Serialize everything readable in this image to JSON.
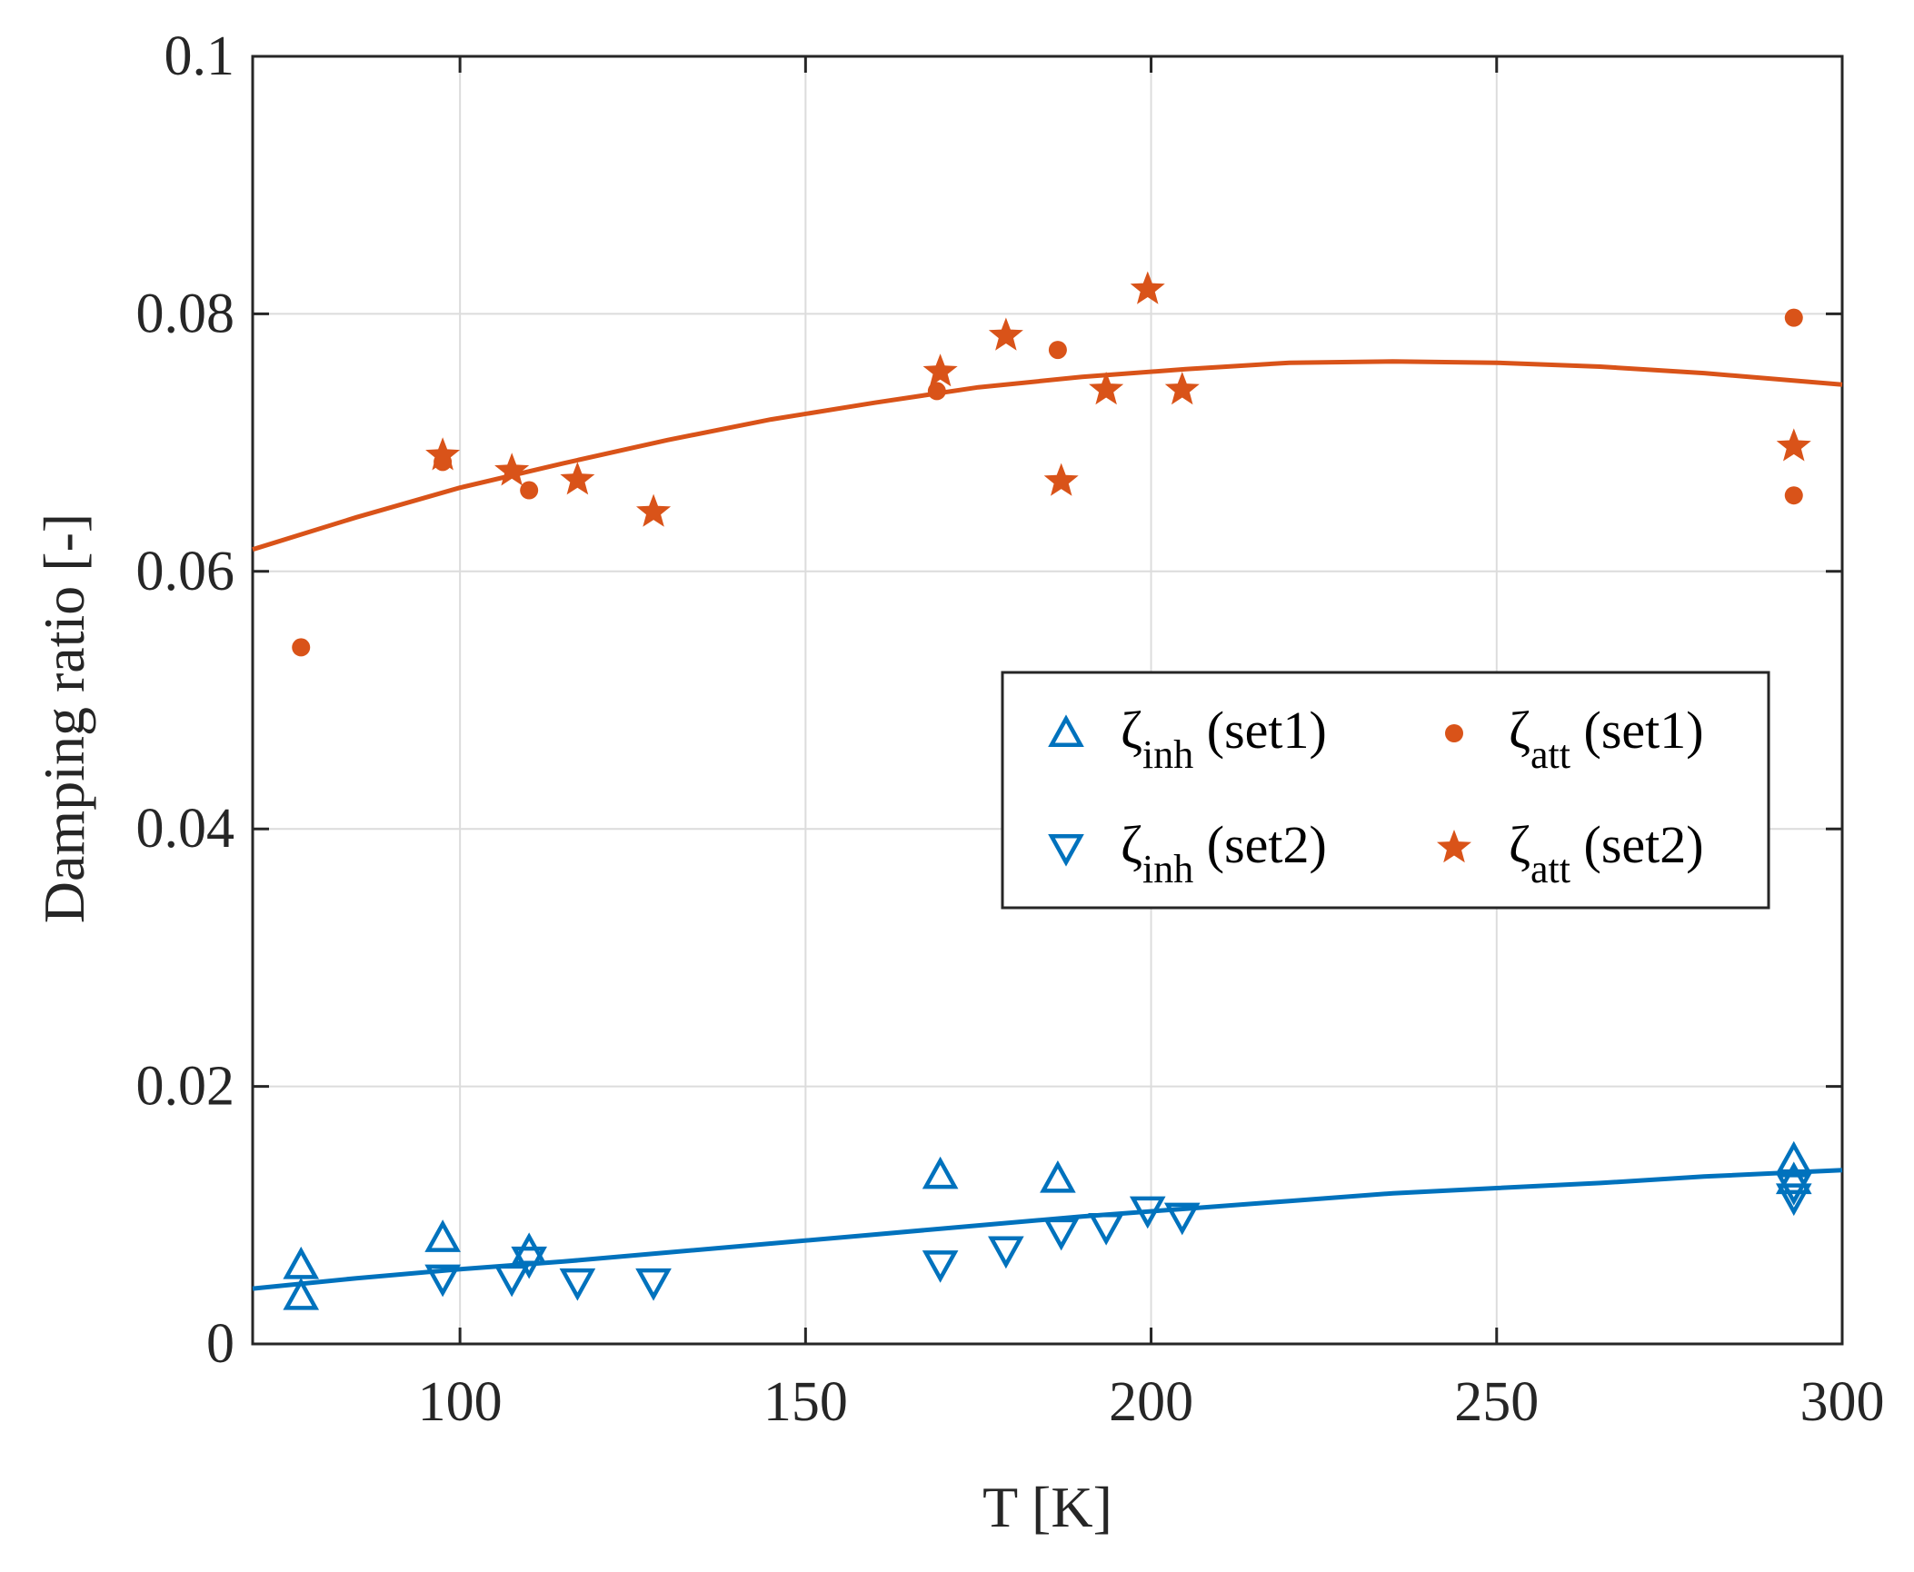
{
  "chart_data": {
    "type": "scatter",
    "title": "",
    "xlabel": "T [K]",
    "ylabel": "Damping ratio [-]",
    "xlim": [
      70,
      300
    ],
    "ylim": [
      0,
      0.1
    ],
    "x_ticks": [
      100,
      150,
      200,
      250,
      300
    ],
    "x_tick_labels": [
      "100",
      "150",
      "200",
      "250",
      "300"
    ],
    "y_ticks": [
      0,
      0.02,
      0.04,
      0.06,
      0.08,
      0.1
    ],
    "y_tick_labels": [
      "0",
      "0.02",
      "0.04",
      "0.06",
      "0.08",
      "0.1"
    ],
    "grid": true,
    "legend_position": "center-right",
    "series": [
      {
        "name": "ζinh (set1)",
        "label_main": "ζ",
        "label_sub": "inh",
        "label_suffix": " (set1)",
        "marker": "triangle-up",
        "color": "#0072BD",
        "points": [
          [
            77,
            0.0061
          ],
          [
            77,
            0.0037
          ],
          [
            97.5,
            0.0082
          ],
          [
            110,
            0.0072
          ],
          [
            169.5,
            0.0131
          ],
          [
            186.5,
            0.0128
          ],
          [
            293,
            0.0143
          ],
          [
            293,
            0.0127
          ]
        ]
      },
      {
        "name": "ζinh (set2)",
        "label_main": "ζ",
        "label_sub": "inh",
        "label_suffix": " (set2)",
        "marker": "triangle-down",
        "color": "#0072BD",
        "points": [
          [
            97.5,
            0.0051
          ],
          [
            107.5,
            0.0051
          ],
          [
            110,
            0.0065
          ],
          [
            117,
            0.0048
          ],
          [
            128,
            0.0048
          ],
          [
            169.5,
            0.0062
          ],
          [
            179,
            0.0073
          ],
          [
            187,
            0.0087
          ],
          [
            193.5,
            0.0091
          ],
          [
            199.5,
            0.0104
          ],
          [
            204.5,
            0.0099
          ],
          [
            293,
            0.0122
          ],
          [
            293,
            0.0114
          ]
        ]
      },
      {
        "name": "ζatt (set1)",
        "label_main": "ζ",
        "label_sub": "att",
        "label_suffix": " (set1)",
        "marker": "dot",
        "color": "#D95319",
        "points": [
          [
            77,
            0.0541
          ],
          [
            97.5,
            0.0685
          ],
          [
            110,
            0.0663
          ],
          [
            169,
            0.074
          ],
          [
            186.5,
            0.0772
          ],
          [
            293,
            0.0797
          ],
          [
            293,
            0.0659
          ]
        ]
      },
      {
        "name": "ζatt (set2)",
        "label_main": "ζ",
        "label_sub": "att",
        "label_suffix": " (set2)",
        "marker": "star",
        "color": "#D95319",
        "points": [
          [
            97.5,
            0.069
          ],
          [
            107.5,
            0.0678
          ],
          [
            117,
            0.0671
          ],
          [
            128,
            0.0646
          ],
          [
            169.5,
            0.0755
          ],
          [
            179,
            0.0783
          ],
          [
            187,
            0.067
          ],
          [
            193.5,
            0.0741
          ],
          [
            199.5,
            0.0819
          ],
          [
            204.5,
            0.0741
          ],
          [
            293,
            0.0697
          ]
        ]
      }
    ],
    "fits": [
      {
        "name": "ζinh fit",
        "color": "#0072BD",
        "points": [
          [
            70,
            0.0043
          ],
          [
            85,
            0.0051
          ],
          [
            100,
            0.0058
          ],
          [
            115,
            0.0064
          ],
          [
            130,
            0.0071
          ],
          [
            145,
            0.0078
          ],
          [
            160,
            0.0085
          ],
          [
            175,
            0.0092
          ],
          [
            190,
            0.0099
          ],
          [
            205,
            0.0105
          ],
          [
            220,
            0.0111
          ],
          [
            235,
            0.0117
          ],
          [
            250,
            0.0121
          ],
          [
            265,
            0.0125
          ],
          [
            280,
            0.013
          ],
          [
            300,
            0.0135
          ]
        ]
      },
      {
        "name": "ζatt fit",
        "color": "#D95319",
        "points": [
          [
            70,
            0.0617
          ],
          [
            85,
            0.0642
          ],
          [
            100,
            0.0665
          ],
          [
            115,
            0.0684
          ],
          [
            130,
            0.0702
          ],
          [
            145,
            0.0718
          ],
          [
            160,
            0.0731
          ],
          [
            175,
            0.0743
          ],
          [
            190,
            0.0751
          ],
          [
            205,
            0.0757
          ],
          [
            220,
            0.0762
          ],
          [
            235,
            0.0763
          ],
          [
            250,
            0.0762
          ],
          [
            265,
            0.0759
          ],
          [
            280,
            0.0754
          ],
          [
            300,
            0.0745
          ]
        ]
      }
    ]
  }
}
